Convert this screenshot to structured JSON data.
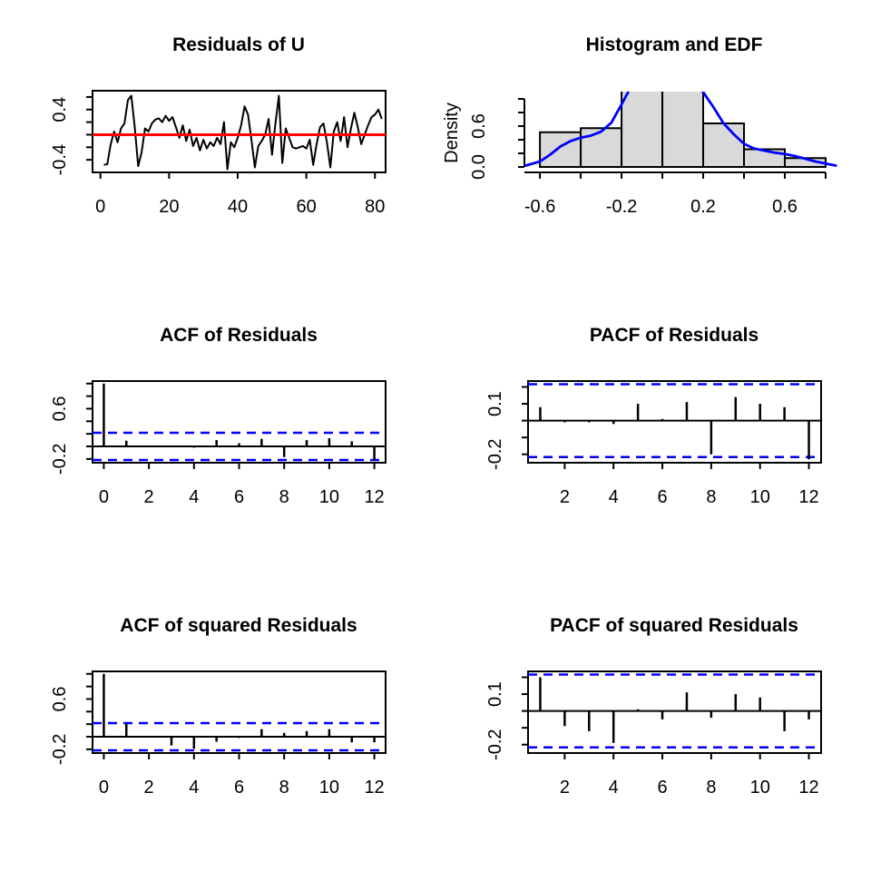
{
  "page": {
    "background": "#ffffff"
  },
  "colors": {
    "axis": "#000000",
    "series": "#000000",
    "zero_mean_line": "#ff0000",
    "confidence_band": "#0000ff",
    "density_curve": "#0000ff",
    "hist_fill": "#d9d9d9",
    "hist_border": "#000000"
  },
  "chart_data": [
    {
      "type": "line",
      "title": "Residuals of U",
      "xlim": [
        -2.3,
        83.1
      ],
      "ylim": [
        -0.6,
        0.7
      ],
      "xticks": {
        "at": [
          0,
          20,
          40,
          60,
          80
        ],
        "labels": [
          "0",
          "20",
          "40",
          "60",
          "80"
        ]
      },
      "yticks": {
        "at": [
          0.6,
          0.4,
          0.2,
          0,
          -0.2,
          -0.4
        ],
        "labels": [
          "",
          "0.4",
          "",
          "",
          "",
          "-0.4"
        ]
      },
      "baseline": 0,
      "x_start": 1,
      "values": [
        -0.48,
        -0.47,
        -0.15,
        0.05,
        -0.12,
        0.1,
        0.18,
        0.55,
        0.62,
        0.12,
        -0.5,
        -0.28,
        0.1,
        0.05,
        0.18,
        0.24,
        0.26,
        0.2,
        0.3,
        0.22,
        0.28,
        0.12,
        -0.05,
        0.15,
        -0.1,
        0.08,
        -0.18,
        -0.05,
        -0.25,
        -0.08,
        -0.22,
        -0.12,
        -0.18,
        -0.05,
        -0.15,
        0.2,
        -0.55,
        -0.12,
        -0.2,
        -0.05,
        0.15,
        0.45,
        0.32,
        -0.08,
        -0.52,
        -0.18,
        -0.1,
        0.0,
        0.25,
        -0.32,
        0.18,
        0.62,
        -0.45,
        0.1,
        -0.05,
        -0.2,
        -0.22,
        -0.2,
        -0.18,
        -0.22,
        -0.08,
        -0.48,
        -0.15,
        0.12,
        0.18,
        -0.12,
        -0.52,
        0.05,
        0.2,
        -0.1,
        0.28,
        -0.2,
        0.1,
        0.35,
        0.12,
        -0.15,
        0.0,
        0.15,
        0.28,
        0.32,
        0.4,
        0.25
      ]
    },
    {
      "type": "histogram",
      "title": "Histogram and EDF",
      "ylabel": "Density",
      "xlim": [
        -0.676,
        0.8
      ],
      "ylim": [
        -0.08,
        1.107
      ],
      "xticks": {
        "at": [
          -0.6,
          -0.4,
          -0.2,
          0,
          0.2,
          0.4,
          0.6,
          0.8
        ],
        "labels": [
          "-0.6",
          "",
          "-0.2",
          "",
          "0.2",
          "",
          "0.6",
          ""
        ]
      },
      "yticks": {
        "at": [
          0,
          0.2,
          0.4,
          0.6,
          0.8,
          1.0
        ],
        "labels": [
          "0.0",
          "",
          "",
          "0.6",
          "",
          ""
        ]
      },
      "bin_start": -0.6,
      "bin_width": 0.2,
      "heights": [
        0.51,
        0.57,
        1.25,
        1.25,
        0.64,
        0.26,
        0.13
      ],
      "curve": {
        "x": [
          -0.67,
          -0.6,
          -0.55,
          -0.5,
          -0.45,
          -0.4,
          -0.35,
          -0.3,
          -0.25,
          -0.2,
          -0.15,
          -0.1,
          -0.05,
          0.0,
          0.05,
          0.1,
          0.15,
          0.2,
          0.25,
          0.3,
          0.35,
          0.4,
          0.45,
          0.5,
          0.55,
          0.6,
          0.65,
          0.7,
          0.75,
          0.8,
          0.85
        ],
        "y": [
          0.02,
          0.08,
          0.18,
          0.3,
          0.38,
          0.43,
          0.46,
          0.52,
          0.65,
          0.92,
          1.2,
          1.38,
          1.45,
          1.47,
          1.44,
          1.33,
          1.25,
          1.1,
          0.88,
          0.64,
          0.48,
          0.34,
          0.27,
          0.24,
          0.21,
          0.19,
          0.16,
          0.12,
          0.08,
          0.05,
          0.02
        ]
      }
    },
    {
      "type": "stem",
      "title": "ACF of Residuals",
      "xlim": [
        -0.5,
        12.5
      ],
      "ylim": [
        -0.26,
        1.04
      ],
      "xticks": {
        "at": [
          0,
          2,
          4,
          6,
          8,
          10,
          12
        ],
        "labels": [
          "0",
          "2",
          "4",
          "6",
          "8",
          "10",
          "12"
        ]
      },
      "yticks": {
        "at": [
          1.0,
          0.8,
          0.6,
          0.4,
          0.2,
          0,
          -0.2
        ],
        "labels": [
          "",
          "",
          "0.6",
          "",
          "",
          "",
          "-0.2"
        ]
      },
      "lag_start": 0,
      "conf": 0.216,
      "values": [
        1.0,
        0.09,
        -0.01,
        -0.01,
        -0.02,
        0.1,
        0.05,
        0.12,
        -0.17,
        0.1,
        0.13,
        0.08,
        -0.22
      ]
    },
    {
      "type": "stem",
      "title": "PACF of Residuals",
      "xlim": [
        0.5,
        12.5
      ],
      "ylim": [
        -0.25,
        0.235
      ],
      "xticks": {
        "at": [
          2,
          4,
          6,
          8,
          10,
          12
        ],
        "labels": [
          "2",
          "4",
          "6",
          "8",
          "10",
          "12"
        ]
      },
      "yticks": {
        "at": [
          0.2,
          0.1,
          0,
          -0.1,
          -0.2
        ],
        "labels": [
          "",
          "0.1",
          "",
          "",
          "-0.2"
        ]
      },
      "lag_start": 1,
      "conf": 0.216,
      "values": [
        0.08,
        -0.01,
        -0.01,
        -0.02,
        0.1,
        0.01,
        0.11,
        -0.2,
        0.14,
        0.1,
        0.08,
        -0.23
      ]
    },
    {
      "type": "stem",
      "title": "ACF of squared Residuals",
      "xlim": [
        -0.5,
        12.5
      ],
      "ylim": [
        -0.26,
        1.04
      ],
      "xticks": {
        "at": [
          0,
          2,
          4,
          6,
          8,
          10,
          12
        ],
        "labels": [
          "0",
          "2",
          "4",
          "6",
          "8",
          "10",
          "12"
        ]
      },
      "yticks": {
        "at": [
          1.0,
          0.8,
          0.6,
          0.4,
          0.2,
          0,
          -0.2
        ],
        "labels": [
          "",
          "",
          "0.6",
          "",
          "",
          "",
          "-0.2"
        ]
      },
      "lag_start": 0,
      "conf": 0.216,
      "values": [
        1.0,
        0.21,
        0.0,
        -0.14,
        -0.19,
        -0.08,
        -0.02,
        0.12,
        0.06,
        0.09,
        0.12,
        -0.09,
        -0.09
      ]
    },
    {
      "type": "stem",
      "title": "PACF of squared Residuals",
      "xlim": [
        0.5,
        12.5
      ],
      "ylim": [
        -0.25,
        0.235
      ],
      "xticks": {
        "at": [
          2,
          4,
          6,
          8,
          10,
          12
        ],
        "labels": [
          "2",
          "4",
          "6",
          "8",
          "10",
          "12"
        ]
      },
      "yticks": {
        "at": [
          0.2,
          0.1,
          0,
          -0.1,
          -0.2
        ],
        "labels": [
          "",
          "0.1",
          "",
          "",
          "-0.2"
        ]
      },
      "lag_start": 1,
      "conf": 0.216,
      "values": [
        0.2,
        -0.09,
        -0.12,
        -0.19,
        0.01,
        -0.05,
        0.11,
        -0.04,
        0.1,
        0.08,
        -0.12,
        -0.05
      ]
    }
  ]
}
